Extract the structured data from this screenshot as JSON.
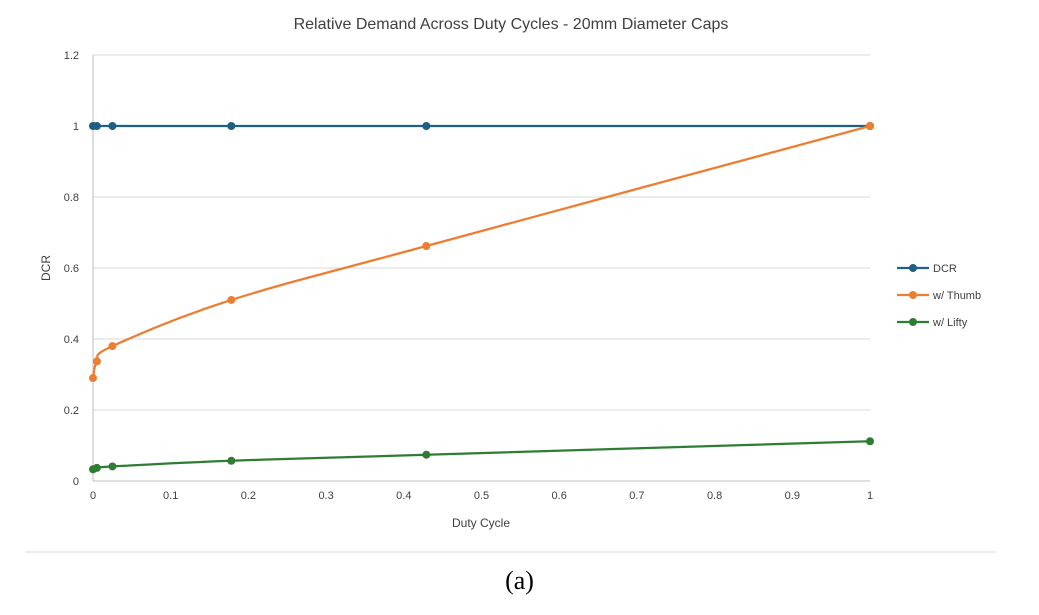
{
  "chart_data": {
    "type": "line",
    "title": "Relative Demand Across Duty Cycles - 20mm Diameter Caps",
    "xlabel": "Duty Cycle",
    "ylabel": "DCR",
    "xlim": [
      0,
      1
    ],
    "ylim": [
      0,
      1.2
    ],
    "x_ticks": [
      0,
      0.1,
      0.2,
      0.3,
      0.4,
      0.5,
      0.6,
      0.7,
      0.8,
      0.9,
      1
    ],
    "x_tick_labels": [
      "0",
      "0.1",
      "0.2",
      "0.3",
      "0.4",
      "0.5",
      "0.6",
      "0.7",
      "0.8",
      "0.9",
      "1"
    ],
    "y_ticks": [
      0,
      0.2,
      0.4,
      0.6,
      0.8,
      1,
      1.2
    ],
    "y_tick_labels": [
      "0",
      "0.2",
      "0.4",
      "0.6",
      "0.8",
      "1",
      "1.2"
    ],
    "grid": "horizontal",
    "legend_position": "right",
    "series": [
      {
        "name": "DCR",
        "color": "#1f5f82",
        "x": [
          0,
          0.005,
          0.025,
          0.178,
          0.429,
          1
        ],
        "y": [
          1,
          1,
          1,
          1,
          1,
          1
        ]
      },
      {
        "name": "w/ Thumb",
        "color": "#ed7d31",
        "x": [
          0,
          0.005,
          0.025,
          0.178,
          0.429,
          1
        ],
        "y": [
          0.29,
          0.337,
          0.38,
          0.51,
          0.662,
          1
        ]
      },
      {
        "name": "w/ Lifty",
        "color": "#2e7d32",
        "x": [
          0,
          0.005,
          0.025,
          0.178,
          0.429,
          1
        ],
        "y": [
          0.033,
          0.037,
          0.041,
          0.057,
          0.074,
          0.112
        ]
      }
    ]
  },
  "caption": "(a)"
}
